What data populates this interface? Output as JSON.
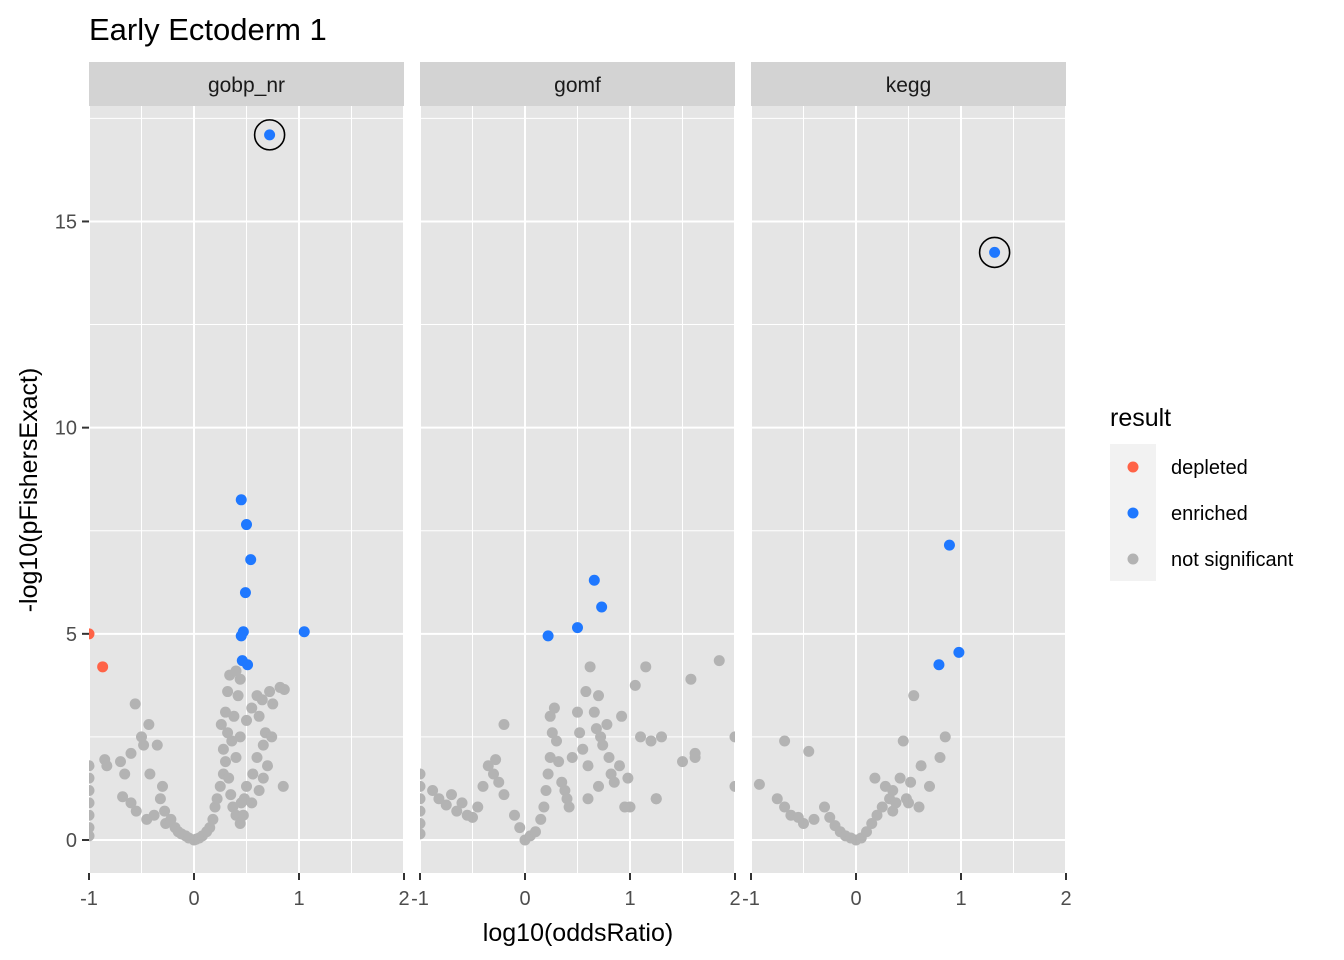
{
  "colors": {
    "panel_bg": "#E5E5E5",
    "strip_bg": "#D3D3D3",
    "grid": "#FFFFFF",
    "depleted": "#FF6347",
    "enriched": "#1F78FF",
    "not_significant": "#B3B3B3",
    "text": "#000000",
    "tick_text": "#4D4D4D"
  },
  "chart_data": {
    "type": "scatter",
    "title": "Early Ectoderm 1",
    "xlabel": "log10(oddsRatio)",
    "ylabel": "-log10(pFishersExact)",
    "xlim": [
      -1,
      2
    ],
    "ylim": [
      -0.8,
      17.8
    ],
    "x_ticks": [
      -1,
      0,
      1,
      2
    ],
    "x_tick_labels": [
      "-1",
      "0",
      "1",
      "2"
    ],
    "y_ticks": [
      0,
      5,
      10,
      15
    ],
    "y_tick_labels": [
      "0",
      "5",
      "10",
      "15"
    ],
    "grid": true,
    "legend": {
      "title": "result",
      "position": "right",
      "entries": [
        {
          "label": "depleted",
          "color_key": "depleted"
        },
        {
          "label": "enriched",
          "color_key": "enriched"
        },
        {
          "label": "not significant",
          "color_key": "not_significant"
        }
      ]
    },
    "facets": [
      {
        "name": "gobp_nr",
        "highlighted": [
          [
            0.72,
            17.1
          ]
        ],
        "points": {
          "depleted": [
            [
              -1.0,
              5.0
            ],
            [
              -0.87,
              4.2
            ]
          ],
          "enriched": [
            [
              0.72,
              17.1
            ],
            [
              0.45,
              8.25
            ],
            [
              0.5,
              7.65
            ],
            [
              0.54,
              6.8
            ],
            [
              0.49,
              6.0
            ],
            [
              0.47,
              5.05
            ],
            [
              0.45,
              4.95
            ],
            [
              1.05,
              5.05
            ],
            [
              0.46,
              4.35
            ],
            [
              0.51,
              4.25
            ]
          ],
          "not_significant": [
            [
              -1.0,
              1.8
            ],
            [
              -1.0,
              1.5
            ],
            [
              -1.0,
              1.2
            ],
            [
              -1.0,
              0.9
            ],
            [
              -1.0,
              0.6
            ],
            [
              -1.0,
              0.3
            ],
            [
              -1.0,
              0.1
            ],
            [
              -0.85,
              1.95
            ],
            [
              -0.83,
              1.8
            ],
            [
              -0.56,
              3.3
            ],
            [
              -0.6,
              2.1
            ],
            [
              -0.5,
              2.5
            ],
            [
              -0.43,
              2.8
            ],
            [
              -0.48,
              2.3
            ],
            [
              -0.35,
              2.3
            ],
            [
              -0.42,
              1.6
            ],
            [
              -0.68,
              1.05
            ],
            [
              -0.6,
              0.9
            ],
            [
              -0.55,
              0.7
            ],
            [
              -0.45,
              0.5
            ],
            [
              -0.38,
              0.6
            ],
            [
              -0.7,
              1.9
            ],
            [
              -0.66,
              1.6
            ],
            [
              -0.3,
              1.3
            ],
            [
              -0.32,
              1.0
            ],
            [
              -0.28,
              0.7
            ],
            [
              -0.27,
              0.4
            ],
            [
              -0.22,
              0.5
            ],
            [
              -0.18,
              0.3
            ],
            [
              -0.15,
              0.2
            ],
            [
              -0.12,
              0.15
            ],
            [
              -0.08,
              0.1
            ],
            [
              -0.05,
              0.05
            ],
            [
              0.0,
              0.0
            ],
            [
              0.02,
              0.02
            ],
            [
              0.05,
              0.05
            ],
            [
              0.08,
              0.1
            ],
            [
              0.12,
              0.2
            ],
            [
              0.15,
              0.3
            ],
            [
              0.18,
              0.5
            ],
            [
              0.2,
              0.8
            ],
            [
              0.22,
              1.0
            ],
            [
              0.25,
              1.3
            ],
            [
              0.28,
              1.6
            ],
            [
              0.3,
              1.9
            ],
            [
              0.33,
              1.5
            ],
            [
              0.35,
              1.1
            ],
            [
              0.37,
              0.8
            ],
            [
              0.4,
              0.6
            ],
            [
              0.44,
              0.4
            ],
            [
              0.36,
              2.4
            ],
            [
              0.4,
              2.0
            ],
            [
              0.32,
              2.6
            ],
            [
              0.38,
              3.0
            ],
            [
              0.42,
              3.5
            ],
            [
              0.34,
              4.0
            ],
            [
              0.4,
              4.1
            ],
            [
              0.44,
              3.9
            ],
            [
              0.3,
              3.1
            ],
            [
              0.32,
              3.6
            ],
            [
              0.28,
              2.2
            ],
            [
              0.26,
              2.8
            ],
            [
              0.44,
              2.5
            ],
            [
              0.5,
              2.9
            ],
            [
              0.55,
              3.2
            ],
            [
              0.6,
              3.5
            ],
            [
              0.62,
              3.0
            ],
            [
              0.68,
              2.6
            ],
            [
              0.65,
              3.4
            ],
            [
              0.72,
              3.6
            ],
            [
              0.75,
              3.3
            ],
            [
              0.82,
              3.7
            ],
            [
              0.86,
              3.65
            ],
            [
              0.66,
              2.3
            ],
            [
              0.6,
              2.0
            ],
            [
              0.56,
              1.6
            ],
            [
              0.5,
              1.3
            ],
            [
              0.48,
              1.0
            ],
            [
              0.45,
              0.9
            ],
            [
              0.47,
              0.6
            ],
            [
              0.55,
              0.9
            ],
            [
              0.62,
              1.2
            ],
            [
              0.66,
              1.5
            ],
            [
              0.7,
              1.8
            ],
            [
              0.85,
              1.3
            ],
            [
              0.74,
              2.5
            ]
          ]
        }
      },
      {
        "name": "gomf",
        "highlighted": [],
        "points": {
          "depleted": [],
          "enriched": [
            [
              0.66,
              6.3
            ],
            [
              0.73,
              5.65
            ],
            [
              0.5,
              5.15
            ],
            [
              0.22,
              4.95
            ]
          ],
          "not_significant": [
            [
              -1.0,
              1.6
            ],
            [
              -1.0,
              1.3
            ],
            [
              -1.0,
              1.0
            ],
            [
              -1.0,
              0.7
            ],
            [
              -1.0,
              0.4
            ],
            [
              -1.0,
              0.15
            ],
            [
              -0.88,
              1.2
            ],
            [
              -0.82,
              1.0
            ],
            [
              -0.75,
              0.85
            ],
            [
              -0.7,
              1.1
            ],
            [
              -0.65,
              0.7
            ],
            [
              -0.6,
              0.9
            ],
            [
              -0.55,
              0.6
            ],
            [
              -0.5,
              0.55
            ],
            [
              -0.45,
              0.8
            ],
            [
              -0.4,
              1.3
            ],
            [
              -0.35,
              1.8
            ],
            [
              -0.3,
              1.6
            ],
            [
              -0.25,
              1.4
            ],
            [
              -0.2,
              1.1
            ],
            [
              -0.2,
              2.8
            ],
            [
              -0.28,
              1.95
            ],
            [
              -0.1,
              0.6
            ],
            [
              -0.05,
              0.3
            ],
            [
              0.0,
              0.0
            ],
            [
              0.05,
              0.1
            ],
            [
              0.1,
              0.2
            ],
            [
              0.15,
              0.5
            ],
            [
              0.18,
              0.8
            ],
            [
              0.2,
              1.2
            ],
            [
              0.22,
              1.6
            ],
            [
              0.24,
              2.0
            ],
            [
              0.26,
              2.6
            ],
            [
              0.24,
              3.0
            ],
            [
              0.28,
              3.2
            ],
            [
              0.3,
              2.4
            ],
            [
              0.32,
              1.9
            ],
            [
              0.35,
              1.4
            ],
            [
              0.38,
              1.2
            ],
            [
              0.4,
              1.0
            ],
            [
              0.42,
              0.8
            ],
            [
              0.45,
              2.0
            ],
            [
              0.5,
              3.1
            ],
            [
              0.52,
              2.6
            ],
            [
              0.55,
              2.2
            ],
            [
              0.58,
              3.6
            ],
            [
              0.6,
              1.8
            ],
            [
              0.62,
              4.2
            ],
            [
              0.66,
              3.1
            ],
            [
              0.68,
              2.7
            ],
            [
              0.7,
              3.5
            ],
            [
              0.72,
              2.5
            ],
            [
              0.74,
              2.3
            ],
            [
              0.78,
              2.8
            ],
            [
              0.8,
              2.0
            ],
            [
              0.82,
              1.6
            ],
            [
              0.85,
              1.4
            ],
            [
              0.9,
              1.8
            ],
            [
              0.92,
              3.0
            ],
            [
              0.98,
              1.5
            ],
            [
              1.05,
              3.75
            ],
            [
              1.0,
              0.8
            ],
            [
              1.1,
              2.5
            ],
            [
              1.15,
              4.2
            ],
            [
              1.2,
              2.4
            ],
            [
              1.3,
              2.5
            ],
            [
              1.25,
              1.0
            ],
            [
              1.5,
              1.9
            ],
            [
              1.62,
              2.0
            ],
            [
              1.58,
              3.9
            ],
            [
              1.62,
              2.1
            ],
            [
              1.85,
              4.35
            ],
            [
              2.0,
              2.5
            ],
            [
              2.0,
              1.3
            ],
            [
              1.25,
              1.0
            ],
            [
              0.95,
              0.8
            ],
            [
              0.6,
              1.0
            ],
            [
              0.7,
              1.3
            ]
          ]
        }
      },
      {
        "name": "kegg",
        "highlighted": [
          [
            1.32,
            14.25
          ]
        ],
        "points": {
          "depleted": [],
          "enriched": [
            [
              1.32,
              14.25
            ],
            [
              0.89,
              7.15
            ],
            [
              0.98,
              4.55
            ],
            [
              0.79,
              4.25
            ]
          ],
          "not_significant": [
            [
              -0.92,
              1.35
            ],
            [
              -0.68,
              2.4
            ],
            [
              -0.45,
              2.15
            ],
            [
              -0.75,
              1.0
            ],
            [
              -0.68,
              0.8
            ],
            [
              -0.62,
              0.6
            ],
            [
              -0.55,
              0.55
            ],
            [
              -0.5,
              0.4
            ],
            [
              -0.4,
              0.5
            ],
            [
              -0.3,
              0.8
            ],
            [
              -0.25,
              0.55
            ],
            [
              -0.2,
              0.35
            ],
            [
              -0.15,
              0.2
            ],
            [
              -0.1,
              0.1
            ],
            [
              -0.05,
              0.05
            ],
            [
              0.0,
              0.0
            ],
            [
              0.05,
              0.05
            ],
            [
              0.1,
              0.2
            ],
            [
              0.15,
              0.4
            ],
            [
              0.18,
              1.5
            ],
            [
              0.2,
              0.6
            ],
            [
              0.25,
              0.8
            ],
            [
              0.28,
              1.3
            ],
            [
              0.32,
              1.0
            ],
            [
              0.35,
              1.2
            ],
            [
              0.38,
              0.9
            ],
            [
              0.42,
              1.5
            ],
            [
              0.45,
              2.4
            ],
            [
              0.48,
              1.0
            ],
            [
              0.52,
              1.4
            ],
            [
              0.55,
              3.5
            ],
            [
              0.6,
              0.8
            ],
            [
              0.62,
              1.8
            ],
            [
              0.7,
              1.3
            ],
            [
              0.8,
              2.0
            ],
            [
              0.85,
              2.5
            ],
            [
              0.35,
              0.7
            ],
            [
              0.5,
              0.9
            ]
          ]
        }
      }
    ]
  }
}
